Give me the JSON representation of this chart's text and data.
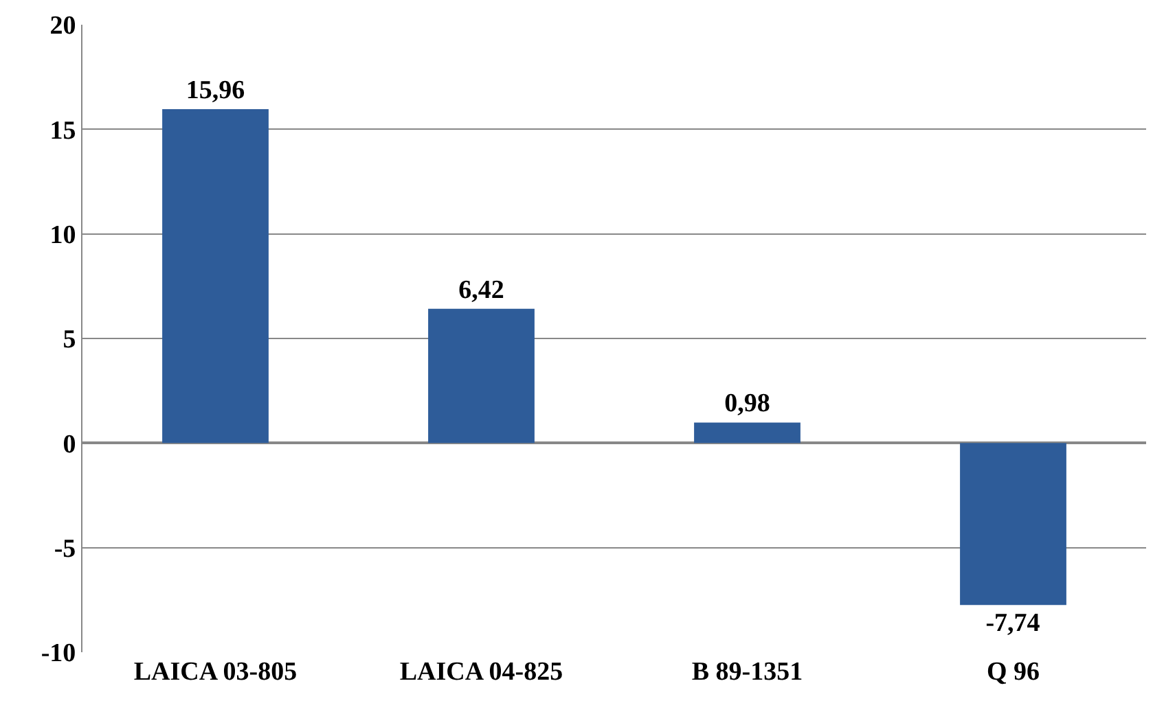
{
  "chart_data": {
    "type": "bar",
    "categories": [
      "LAICA 03-805",
      "LAICA 04-825",
      "B 89-1351",
      "Q 96"
    ],
    "values": [
      15.96,
      6.42,
      0.98,
      -7.74
    ],
    "value_labels": [
      "15,96",
      "6,42",
      "0,98",
      "-7,74"
    ],
    "color": "#2e5c99",
    "ylim": [
      -10,
      20
    ],
    "yticks": [
      {
        "value": -10,
        "label": "-10"
      },
      {
        "value": -5,
        "label": "-5"
      },
      0,
      5,
      10,
      15,
      20
    ],
    "grid": "y"
  }
}
